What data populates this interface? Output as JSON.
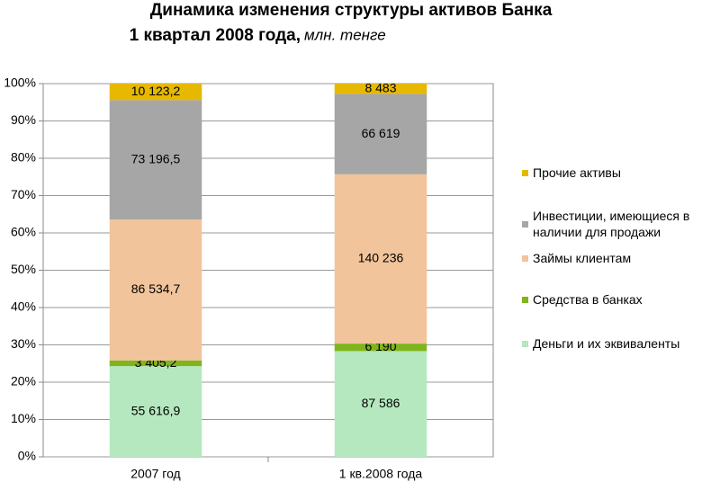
{
  "chart_data": {
    "type": "stacked_percent_bar",
    "title": "Динамика изменения структуры активов Банка",
    "subtitle": "1 квартал 2008 года,",
    "unit": "млн. тенге",
    "categories": [
      "2007 год",
      "1 кв.2008 года"
    ],
    "series": [
      {
        "name": "Деньги и их эквиваленты",
        "color": "#b6e8bf",
        "values": [
          55616.9,
          87586
        ],
        "value_labels": [
          "55 616,9",
          "87 586"
        ]
      },
      {
        "name": "Средства в банках",
        "color": "#7fb51c",
        "values": [
          3405.2,
          6190
        ],
        "value_labels": [
          "3 405,2",
          "6 190"
        ]
      },
      {
        "name": "Займы клиентам",
        "color": "#f1c49b",
        "values": [
          86534.7,
          140236
        ],
        "value_labels": [
          "86 534,7",
          "140 236"
        ]
      },
      {
        "name": "Инвестиции, имеющиеся в наличии для продажи",
        "color": "#a6a6a6",
        "values": [
          73196.5,
          66619
        ],
        "value_labels": [
          "73 196,5",
          "66 619"
        ]
      },
      {
        "name": "Прочие активы",
        "color": "#e6b800",
        "values": [
          10123.2,
          8483
        ],
        "value_labels": [
          "10 123,2",
          "8 483"
        ]
      }
    ],
    "ylim": [
      0,
      100
    ],
    "yticks": [
      {
        "value": 0,
        "label": "0%"
      },
      {
        "value": 10,
        "label": "10%"
      },
      {
        "value": 20,
        "label": "20%"
      },
      {
        "value": 30,
        "label": "30%"
      },
      {
        "value": 40,
        "label": "40%"
      },
      {
        "value": 50,
        "label": "50%"
      },
      {
        "value": 60,
        "label": "60%"
      },
      {
        "value": 70,
        "label": "70%"
      },
      {
        "value": 80,
        "label": "80%"
      },
      {
        "value": 90,
        "label": "90%"
      },
      {
        "value": 100,
        "label": "100%"
      }
    ],
    "grid": true
  }
}
